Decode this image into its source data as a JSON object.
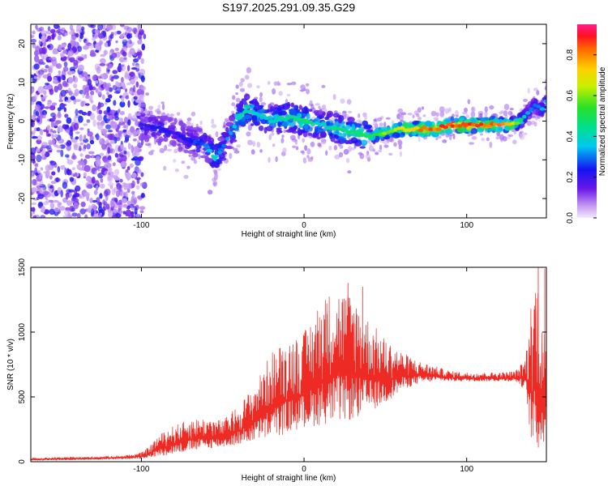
{
  "title": "S197.2025.291.09.35.G29",
  "colors": {
    "snr_line": "#ee2a24",
    "axis": "#000000",
    "scatter_noise": "#9a55e8",
    "ridge_low": "#4a10e0",
    "ridge_mid": "#22d6c6",
    "ridge_high": "#e81c1c"
  },
  "chart_data": [
    {
      "type": "heatmap",
      "name": "spectrogram",
      "xlabel": "Height of straight line (km)",
      "ylabel": "Frequency (Hz)",
      "xlim": [
        -168,
        149
      ],
      "ylim": [
        -25,
        25
      ],
      "xticks": [
        "-100",
        "0",
        "100"
      ],
      "xtick_values": [
        -100,
        0,
        100
      ],
      "yticks": [
        "-20",
        "-10",
        "0",
        "10",
        "20"
      ],
      "ytick_values": [
        -20,
        -10,
        0,
        10,
        20
      ],
      "noise_region_x": [
        -168,
        -98
      ],
      "ridge": {
        "x": [
          -100,
          -90,
          -80,
          -70,
          -60,
          -55,
          -50,
          -45,
          -40,
          -35,
          -30,
          -20,
          -10,
          0,
          10,
          20,
          30,
          40,
          50,
          60,
          70,
          80,
          90,
          100,
          110,
          120,
          128,
          133,
          137,
          142,
          146,
          149
        ],
        "freq": [
          -1,
          -2,
          -3,
          -5,
          -6,
          -10,
          -7,
          -3,
          1,
          3,
          2,
          0,
          1,
          0,
          -1,
          -2,
          -3,
          -4,
          -3,
          -2,
          -2,
          -2,
          -1,
          -1,
          -1,
          -1,
          -1,
          0,
          2,
          4,
          3,
          5
        ],
        "amplitude": [
          0.2,
          0.25,
          0.2,
          0.25,
          0.3,
          0.45,
          0.3,
          0.35,
          0.45,
          0.45,
          0.4,
          0.4,
          0.45,
          0.5,
          0.4,
          0.45,
          0.5,
          0.5,
          0.6,
          0.7,
          0.8,
          0.85,
          0.9,
          0.9,
          0.85,
          0.8,
          0.7,
          0.5,
          0.35,
          0.3,
          0.35,
          0.4
        ]
      },
      "colorbar": {
        "label": "Normalized spectral amplitude",
        "range": [
          0,
          0.95
        ],
        "ticks": [
          "0.0",
          "0.2",
          "0.4",
          "0.6",
          "0.8"
        ],
        "tick_values": [
          0.0,
          0.2,
          0.4,
          0.6,
          0.8
        ]
      }
    },
    {
      "type": "line",
      "name": "snr",
      "xlabel": "Height of straight line (km)",
      "ylabel": "SNR (10 * v/v)",
      "xlim": [
        -168,
        149
      ],
      "ylim": [
        0,
        1500
      ],
      "xticks": [
        "-100",
        "0",
        "100"
      ],
      "xtick_values": [
        -100,
        0,
        100
      ],
      "yticks": [
        "0",
        "500",
        "1000",
        "1500"
      ],
      "ytick_values": [
        0,
        500,
        1000,
        1500
      ],
      "envelope": {
        "x": [
          -168,
          -150,
          -130,
          -110,
          -100,
          -95,
          -90,
          -80,
          -70,
          -60,
          -50,
          -40,
          -30,
          -20,
          -10,
          0,
          10,
          20,
          30,
          40,
          50,
          60,
          70,
          80,
          90,
          100,
          110,
          120,
          130,
          136,
          140,
          143,
          146,
          149
        ],
        "lo": [
          10,
          12,
          15,
          20,
          25,
          30,
          40,
          60,
          80,
          100,
          110,
          130,
          160,
          180,
          220,
          260,
          280,
          300,
          320,
          380,
          450,
          550,
          600,
          620,
          620,
          620,
          620,
          620,
          620,
          550,
          120,
          60,
          100,
          200
        ],
        "hi": [
          30,
          35,
          40,
          50,
          70,
          120,
          200,
          280,
          330,
          340,
          320,
          440,
          600,
          850,
          950,
          1000,
          1250,
          1350,
          1300,
          1100,
          950,
          850,
          780,
          740,
          700,
          690,
          690,
          690,
          700,
          800,
          1300,
          1500,
          1200,
          900
        ]
      },
      "peaks": [
        {
          "x": 27,
          "y": 1380
        },
        {
          "x": 36,
          "y": 1350
        },
        {
          "x": 14,
          "y": 1220
        },
        {
          "x": 144,
          "y": 1500
        },
        {
          "x": 148,
          "y": 1490
        }
      ]
    }
  ]
}
